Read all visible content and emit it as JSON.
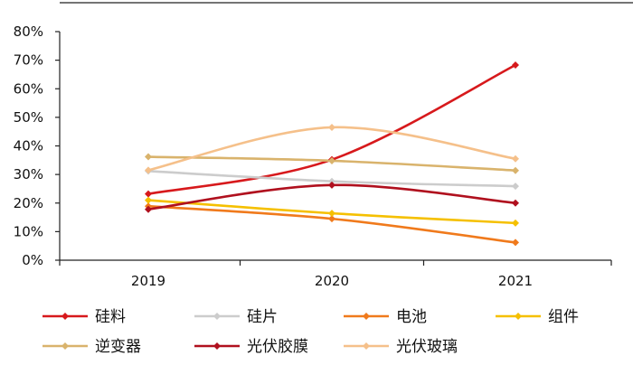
{
  "chart_data": {
    "type": "line",
    "categories": [
      "2019",
      "2020",
      "2021"
    ],
    "ylim": [
      0,
      80
    ],
    "yticks": [
      "0%",
      "10%",
      "20%",
      "30%",
      "40%",
      "50%",
      "60%",
      "70%",
      "80%"
    ],
    "smooth": true,
    "legend_position": "bottom",
    "series": [
      {
        "name": "硅料",
        "color": "#d7191c",
        "values": [
          23.2,
          35.2,
          68.3
        ]
      },
      {
        "name": "硅片",
        "color": "#cccccc",
        "values": [
          31.2,
          27.6,
          25.9
        ]
      },
      {
        "name": "电池",
        "color": "#f07a1c",
        "values": [
          18.9,
          14.5,
          6.2
        ]
      },
      {
        "name": "组件",
        "color": "#f5c000",
        "values": [
          21.0,
          16.4,
          13.0
        ]
      },
      {
        "name": "逆变器",
        "color": "#d9b36c",
        "values": [
          36.2,
          34.8,
          31.4
        ]
      },
      {
        "name": "光伏胶膜",
        "color": "#b0101e",
        "values": [
          17.8,
          26.3,
          20.0
        ]
      },
      {
        "name": "光伏玻璃",
        "color": "#f5c08a",
        "values": [
          31.5,
          46.5,
          35.5
        ]
      }
    ]
  }
}
